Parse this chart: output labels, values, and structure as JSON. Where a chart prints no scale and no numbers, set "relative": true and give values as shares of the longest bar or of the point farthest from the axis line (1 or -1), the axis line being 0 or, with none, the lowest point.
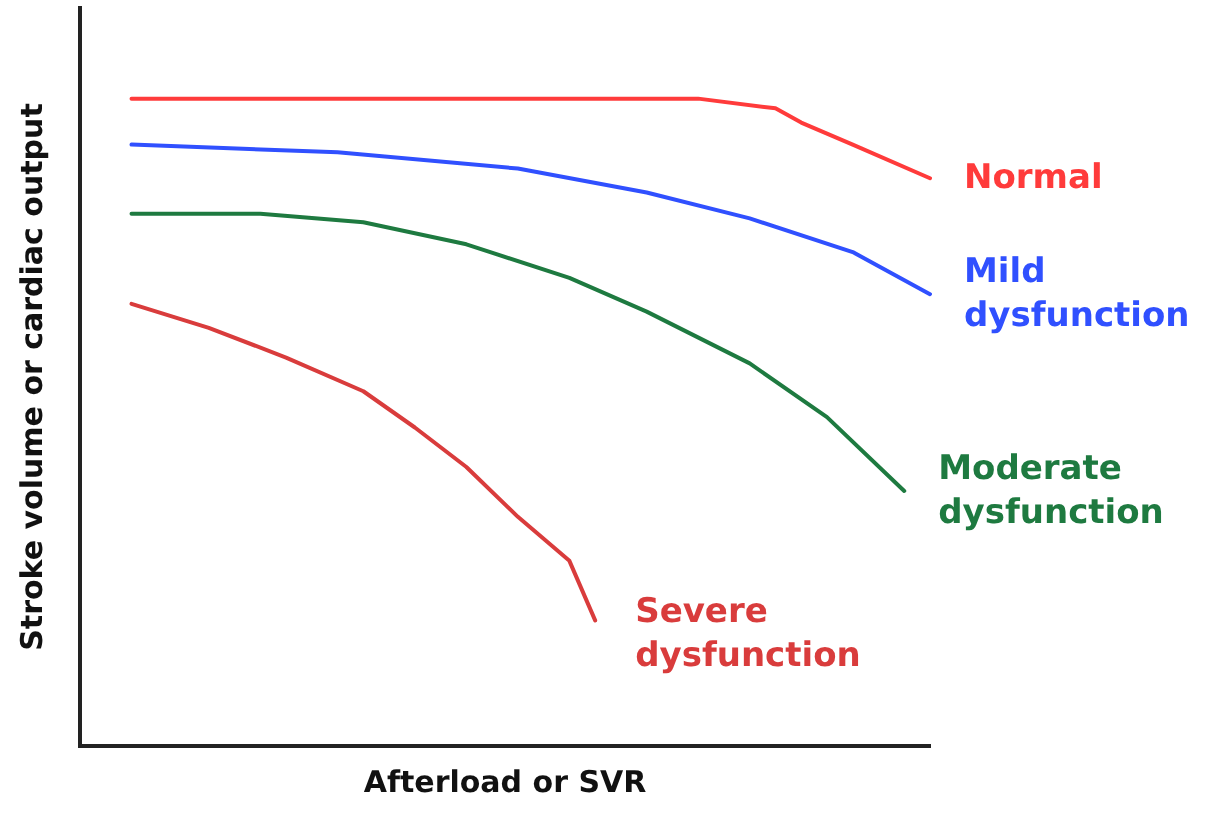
{
  "chart_data": {
    "type": "line",
    "xlabel": "Afterload or SVR",
    "ylabel": "Stroke volume or cardiac output",
    "relative": true,
    "tick_labels": false,
    "grid": false,
    "legend": false,
    "marker": "none",
    "line_style": "solid",
    "categories": [
      null,
      null,
      null,
      null,
      null,
      null,
      null,
      null,
      null,
      null,
      null,
      null,
      null,
      null,
      null,
      null,
      null,
      null,
      null,
      null,
      null,
      null,
      null,
      null,
      null,
      null,
      null,
      null,
      null,
      null,
      null,
      null,
      null,
      null
    ],
    "series": [
      {
        "name": "Normal",
        "color": "#ff3b3b",
        "values": [
          null,
          null,
          1,
          null,
          null,
          null,
          null,
          null,
          null,
          null,
          null,
          null,
          null,
          null,
          null,
          null,
          null,
          null,
          null,
          null,
          null,
          null,
          null,
          null,
          1,
          null,
          null,
          0.985,
          0.963,
          null,
          0.929,
          null,
          null,
          0.877
        ]
      },
      {
        "name": "Mild dysfunction",
        "color": "#3050ff",
        "values": [
          null,
          null,
          0.929,
          null,
          null,
          null,
          null,
          null,
          null,
          null,
          0.917,
          null,
          null,
          null,
          null,
          null,
          null,
          0.892,
          null,
          null,
          null,
          null,
          0.855,
          null,
          null,
          null,
          0.815,
          null,
          null,
          null,
          0.763,
          null,
          null,
          0.698
        ]
      },
      {
        "name": "Moderate dysfunction",
        "color": "#1e7a40",
        "values": [
          null,
          null,
          0.822,
          null,
          null,
          null,
          null,
          0.822,
          null,
          null,
          null,
          0.809,
          null,
          null,
          null,
          0.775,
          null,
          null,
          null,
          0.723,
          null,
          null,
          0.671,
          null,
          null,
          null,
          0.591,
          null,
          null,
          0.508,
          null,
          null,
          0.394,
          null
        ]
      },
      {
        "name": "Severe dysfunction",
        "color": "#d93c3c",
        "values": [
          null,
          null,
          0.683,
          null,
          null,
          0.646,
          null,
          null,
          0.6,
          null,
          null,
          0.548,
          null,
          0.492,
          null,
          0.431,
          null,
          0.354,
          null,
          0.286,
          0.194,
          null,
          null,
          null,
          null,
          null,
          null,
          null,
          null,
          null,
          null,
          null,
          null,
          null
        ]
      }
    ]
  }
}
